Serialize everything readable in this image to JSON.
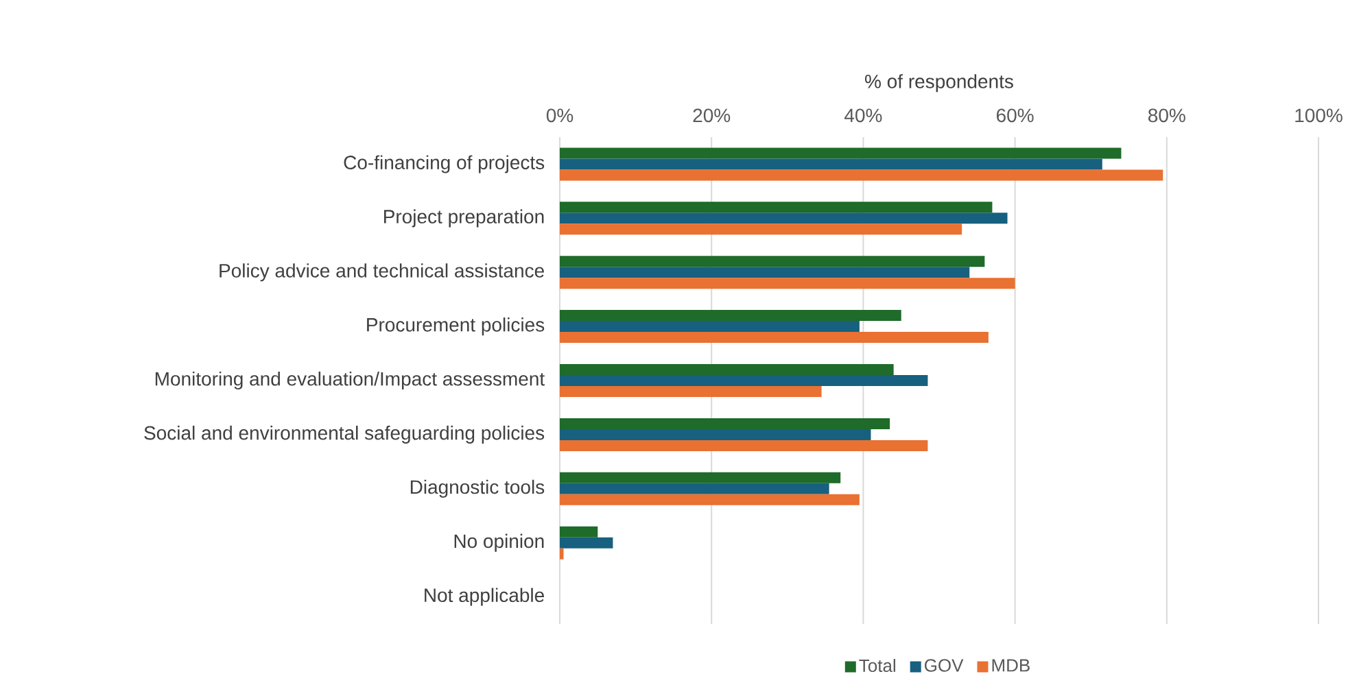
{
  "chart_data": {
    "type": "bar",
    "orientation": "horizontal",
    "xlabel": "% of respondents",
    "categories": [
      "Co-financing of projects",
      "Project preparation",
      "Policy advice and technical assistance",
      "Procurement policies",
      "Monitoring and evaluation/Impact assessment",
      "Social and environmental safeguarding policies",
      "Diagnostic tools",
      "No opinion",
      "Not applicable"
    ],
    "series": [
      {
        "name": "Total",
        "color": "#1e6b2a",
        "values": [
          74,
          57,
          56,
          45,
          44,
          43.5,
          37,
          5,
          0
        ]
      },
      {
        "name": "GOV",
        "color": "#17607f",
        "values": [
          71.5,
          59,
          54,
          39.5,
          48.5,
          41,
          35.5,
          7,
          0
        ]
      },
      {
        "name": "MDB",
        "color": "#e97132",
        "values": [
          79.5,
          53,
          60,
          56.5,
          34.5,
          48.5,
          39.5,
          0.5,
          0
        ]
      }
    ],
    "xlim": [
      0,
      100
    ],
    "xticks": [
      {
        "value": 0,
        "label": "0%"
      },
      {
        "value": 20,
        "label": "20%"
      },
      {
        "value": 40,
        "label": "40%"
      },
      {
        "value": 60,
        "label": "60%"
      },
      {
        "value": 80,
        "label": "80%"
      },
      {
        "value": 100,
        "label": "100%"
      }
    ],
    "grid": "x",
    "legend": "bottom"
  }
}
